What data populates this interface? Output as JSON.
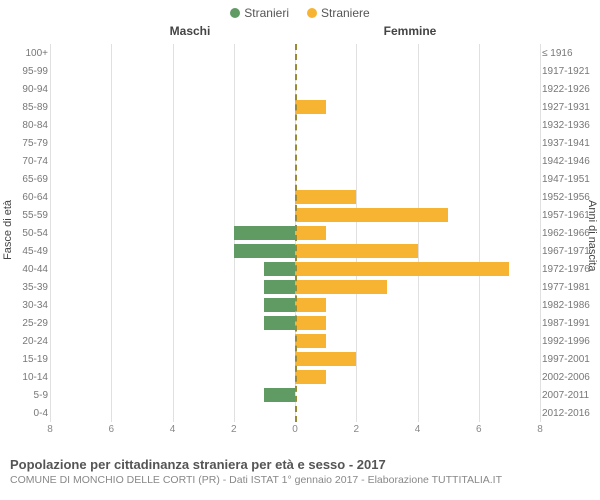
{
  "legend": {
    "series_male": {
      "label": "Stranieri",
      "color": "#5f9b63"
    },
    "series_female": {
      "label": "Straniere",
      "color": "#f7b332"
    }
  },
  "headers": {
    "left": "Maschi",
    "right": "Femmine"
  },
  "y_axes": {
    "left_title": "Fasce di età",
    "right_title": "Anni di nascita"
  },
  "x_axis": {
    "max": 8,
    "ticks": [
      8,
      6,
      4,
      2,
      0,
      2,
      4,
      6,
      8
    ],
    "grid_color": "#e0e0e0"
  },
  "styling": {
    "background": "#ffffff",
    "centerline_color": "#9a8a33",
    "label_color": "#777"
  },
  "rows": [
    {
      "age": "0-4",
      "years": "2012-2016",
      "m": 0,
      "f": 0
    },
    {
      "age": "5-9",
      "years": "2007-2011",
      "m": 1,
      "f": 0
    },
    {
      "age": "10-14",
      "years": "2002-2006",
      "m": 0,
      "f": 1
    },
    {
      "age": "15-19",
      "years": "1997-2001",
      "m": 0,
      "f": 2
    },
    {
      "age": "20-24",
      "years": "1992-1996",
      "m": 0,
      "f": 1
    },
    {
      "age": "25-29",
      "years": "1987-1991",
      "m": 1,
      "f": 1
    },
    {
      "age": "30-34",
      "years": "1982-1986",
      "m": 1,
      "f": 1
    },
    {
      "age": "35-39",
      "years": "1977-1981",
      "m": 1,
      "f": 3
    },
    {
      "age": "40-44",
      "years": "1972-1976",
      "m": 1,
      "f": 7
    },
    {
      "age": "45-49",
      "years": "1967-1971",
      "m": 2,
      "f": 4
    },
    {
      "age": "50-54",
      "years": "1962-1966",
      "m": 2,
      "f": 1
    },
    {
      "age": "55-59",
      "years": "1957-1961",
      "m": 0,
      "f": 5
    },
    {
      "age": "60-64",
      "years": "1952-1956",
      "m": 0,
      "f": 2
    },
    {
      "age": "65-69",
      "years": "1947-1951",
      "m": 0,
      "f": 0
    },
    {
      "age": "70-74",
      "years": "1942-1946",
      "m": 0,
      "f": 0
    },
    {
      "age": "75-79",
      "years": "1937-1941",
      "m": 0,
      "f": 0
    },
    {
      "age": "80-84",
      "years": "1932-1936",
      "m": 0,
      "f": 0
    },
    {
      "age": "85-89",
      "years": "1927-1931",
      "m": 0,
      "f": 1
    },
    {
      "age": "90-94",
      "years": "1922-1926",
      "m": 0,
      "f": 0
    },
    {
      "age": "95-99",
      "years": "1917-1921",
      "m": 0,
      "f": 0
    },
    {
      "age": "100+",
      "years": "≤ 1916",
      "m": 0,
      "f": 0
    }
  ],
  "titles": {
    "main": "Popolazione per cittadinanza straniera per età e sesso - 2017",
    "sub": "COMUNE DI MONCHIO DELLE CORTI (PR) - Dati ISTAT 1° gennaio 2017 - Elaborazione TUTTITALIA.IT"
  }
}
